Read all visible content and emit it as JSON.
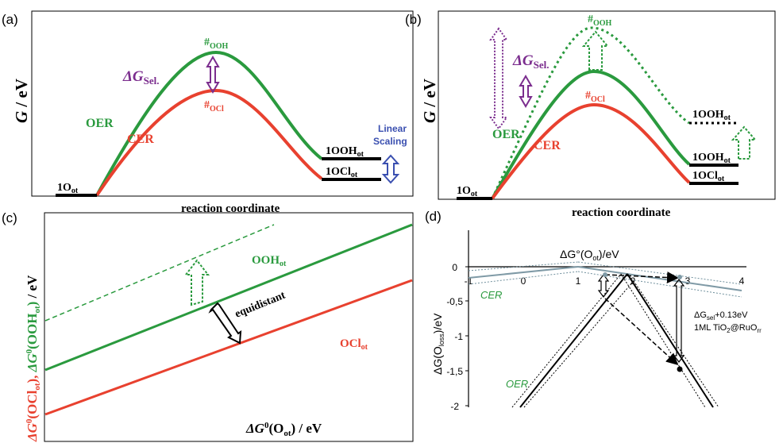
{
  "colors": {
    "oer": "#2a9a3e",
    "cer": "#e8412f",
    "purple": "#7b2d8e",
    "blue": "#3a4fb0",
    "black": "#000000",
    "grey_line": "#7f9aa6",
    "dotted_grey": "#6f8f9c"
  },
  "panel_a": {
    "letter": "(a)",
    "ylabel_main": "G",
    "ylabel_unit": " / eV",
    "xlabel": "reaction coordinate",
    "delta_g": "ΔG",
    "delta_g_sub": "Sel.",
    "ts_oer_hash": "#",
    "ts_oer_sub": "OOH",
    "ts_cer_hash": "#",
    "ts_cer_sub": "OCl",
    "oer_label": "OER",
    "cer_label": "CER",
    "start_label": "1O",
    "start_sub": "ot",
    "end_oer": "1OOH",
    "end_oer_sub": "ot",
    "end_cer": "1OCl",
    "end_cer_sub": "ot",
    "linear": "Linear",
    "scaling": "Scaling"
  },
  "panel_b": {
    "letter": "(b)",
    "ylabel_main": "G",
    "ylabel_unit": " / eV",
    "xlabel": "reaction coordinate",
    "delta_g": "ΔG",
    "delta_g_sub": "Sel.",
    "ts_top_hash": "#",
    "ts_top_sub": "OOH",
    "ts_cer_hash": "#",
    "ts_cer_sub": "OCl",
    "oer_label": "OER",
    "cer_label": "CER",
    "start_label": "1O",
    "start_sub": "ot",
    "end_dotted": "1OOH",
    "end_dotted_sub": "ot",
    "end_oer": "1OOH",
    "end_oer_sub": "ot",
    "end_cer": "1OCl",
    "end_cer_sub": "ot"
  },
  "panel_c": {
    "letter": "(c)",
    "ylabel_red": "ΔG",
    "ylabel_red_sup": "0",
    "ylabel_red_paren": "(OCl",
    "ylabel_red_sub": "ot",
    "ylabel_red_close": "),",
    "ylabel_green": " ΔG",
    "ylabel_green_sup": "0",
    "ylabel_green_paren": "(OOH",
    "ylabel_green_sub": "ot",
    "ylabel_green_close": ")",
    "ylabel_unit": " / eV",
    "ooh_label": "OOH",
    "ooh_sub": "ot",
    "ocl_label": "OCl",
    "ocl_sub": "ot",
    "equidistant": "equidistant",
    "xlabel_main": "ΔG",
    "xlabel_sup": "0",
    "xlabel_paren": "(O",
    "xlabel_sub": "ot",
    "xlabel_close": ") / eV"
  },
  "panel_d": {
    "letter": "(d)",
    "xlabel_main": "ΔG°(O",
    "xlabel_sub": "ot",
    "xlabel_close": ")/eV",
    "ylabel_main": "ΔG(O",
    "ylabel_sub": "loss",
    "ylabel_close": ")/eV",
    "x_ticks": [
      "-1",
      "0",
      "1",
      "2",
      "3",
      "4"
    ],
    "y_ticks": [
      "0",
      "-0,5",
      "-1",
      "-1,5",
      "-2"
    ],
    "cer_label": "CER",
    "oer_label": "OER",
    "annotation1_main": "ΔG",
    "annotation1_sub": "sel",
    "annotation1_rest": "+0.13eV",
    "annotation2_main": "1ML TiO",
    "annotation2_sub": "2",
    "annotation2_mid": "@RuO",
    "annotation2_sub2": "rr"
  }
}
